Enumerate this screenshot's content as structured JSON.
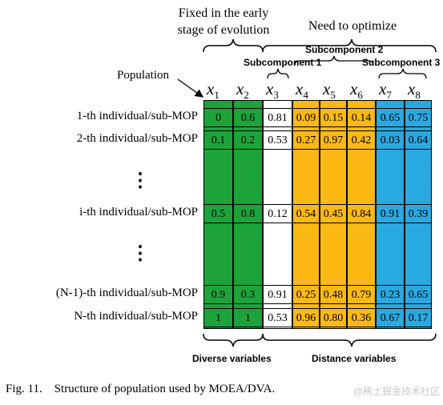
{
  "annotations": {
    "fixed_early": [
      "Fixed in the early",
      "stage of evolution"
    ],
    "need_optimize": "Need to optimize",
    "population": "Population",
    "subcomponent_1": "Subcomponent 1",
    "subcomponent_2": "Subcomponent 2",
    "subcomponent_3": "Subcomponent 3",
    "diverse_variables": "Diverse variables",
    "distance_variables": "Distance variables"
  },
  "variables": [
    {
      "sym": "x",
      "sub": "1",
      "color": "#1ca43b"
    },
    {
      "sym": "x",
      "sub": "2",
      "color": "#1ca43b"
    },
    {
      "sym": "x",
      "sub": "3",
      "color": "#ffffff"
    },
    {
      "sym": "x",
      "sub": "4",
      "color": "#fdb913"
    },
    {
      "sym": "x",
      "sub": "5",
      "color": "#fdb913"
    },
    {
      "sym": "x",
      "sub": "6",
      "color": "#fdb913"
    },
    {
      "sym": "x",
      "sub": "7",
      "color": "#29a9e1"
    },
    {
      "sym": "x",
      "sub": "8",
      "color": "#29a9e1"
    }
  ],
  "rows": [
    {
      "label": "1-th individual/sub-MOP",
      "values": [
        "0",
        "0.6",
        "0.81",
        "0.09",
        "0.15",
        "0.14",
        "0.65",
        "0.75"
      ]
    },
    {
      "label": "2-th individual/sub-MOP",
      "values": [
        "0.1",
        "0.2",
        "0.53",
        "0.27",
        "0.97",
        "0.42",
        "0.03",
        "0.64"
      ]
    },
    {
      "label": "i-th individual/sub-MOP",
      "values": [
        "0.5",
        "0.8",
        "0.12",
        "0.54",
        "0.45",
        "0.84",
        "0.91",
        "0.39"
      ]
    },
    {
      "label": "(N-1)-th individual/sub-MOP",
      "values": [
        "0.9",
        "0.3",
        "0.91",
        "0.25",
        "0.48",
        "0.79",
        "0.23",
        "0.65"
      ]
    },
    {
      "label": "N-th individual/sub-MOP",
      "values": [
        "1",
        "1",
        "0.53",
        "0.96",
        "0.80",
        "0.36",
        "0.67",
        "0.17"
      ]
    }
  ],
  "ellipsis": "⋮",
  "caption": "Fig. 11.    Structure of population used by MOEA/DVA.",
  "watermark": "@稀土掘金技术社区"
}
